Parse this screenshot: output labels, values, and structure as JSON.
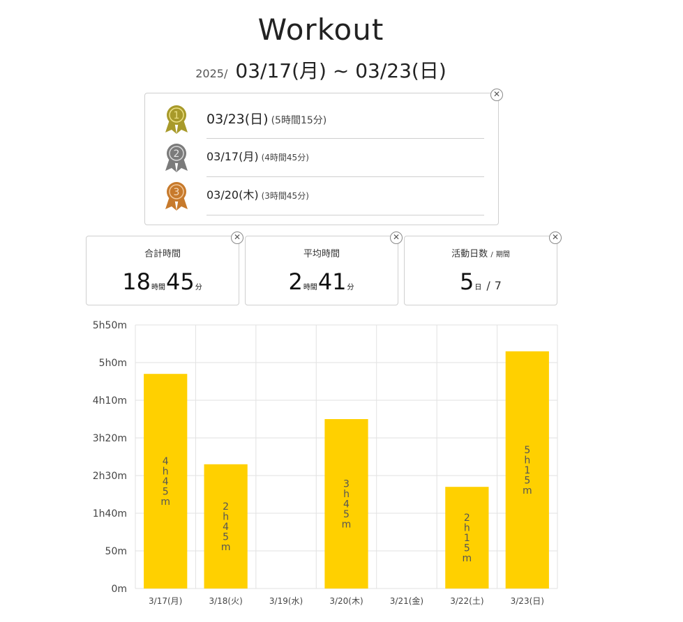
{
  "header": {
    "title": "Workout",
    "year": "2025/",
    "range": "03/17(月) ~ 03/23(日)"
  },
  "ranking": {
    "close_icon": "close-icon",
    "items": [
      {
        "date": "03/23(日)",
        "duration": "(5時間15分)",
        "medal_color": "#a89a2a",
        "number": "1"
      },
      {
        "date": "03/17(月)",
        "duration": "(4時間45分)",
        "medal_color": "#7b7b7b",
        "number": "2"
      },
      {
        "date": "03/20(木)",
        "duration": "(3時間45分)",
        "medal_color": "#c77a2c",
        "number": "3"
      }
    ]
  },
  "stats": {
    "total": {
      "label": "合計時間",
      "hours": "18",
      "hours_unit": "時間",
      "minutes": "45",
      "minutes_unit": "分"
    },
    "average": {
      "label": "平均時間",
      "hours": "2",
      "hours_unit": "時間",
      "minutes": "41",
      "minutes_unit": "分"
    },
    "active": {
      "label": "活動日数",
      "label_sep": "/",
      "label_sub": "期間",
      "days": "5",
      "days_unit": "日",
      "sep": "/",
      "period": "7"
    }
  },
  "chart_data": {
    "type": "bar",
    "categories": [
      "3/17(月)",
      "3/18(火)",
      "3/19(水)",
      "3/20(木)",
      "3/21(金)",
      "3/22(土)",
      "3/23(日)"
    ],
    "values_minutes": [
      285,
      165,
      0,
      225,
      0,
      135,
      315
    ],
    "bar_labels": [
      "4h45m",
      "2h45m",
      "",
      "3h45m",
      "",
      "2h15m",
      "5h15m"
    ],
    "ylim_minutes": [
      0,
      350
    ],
    "yticks_minutes": [
      0,
      50,
      100,
      150,
      200,
      250,
      300,
      350
    ],
    "ytick_labels": [
      "0m",
      "50m",
      "1h40m",
      "2h30m",
      "3h20m",
      "4h10m",
      "5h0m",
      "5h50m"
    ],
    "bar_color": "#ffd000",
    "grid": true
  }
}
